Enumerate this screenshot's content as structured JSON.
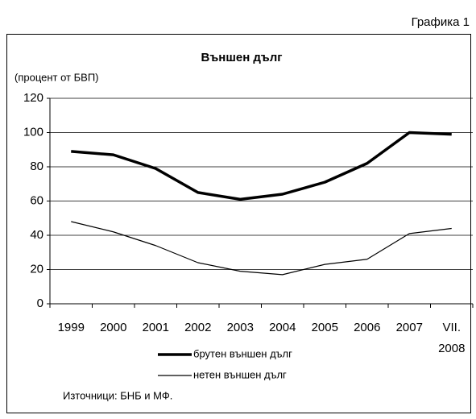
{
  "page_label": "Графика 1",
  "chart_data": {
    "type": "line",
    "title": "Външен дълг",
    "y_label": "(процент от БВП)",
    "categories": [
      "1999",
      "2000",
      "2001",
      "2002",
      "2003",
      "2004",
      "2005",
      "2006",
      "2007",
      "VII.\n2008"
    ],
    "series": [
      {
        "name": "брутен външен дълг",
        "color": "#000000",
        "width": 3.5,
        "values": [
          89,
          87,
          79,
          65,
          61,
          64,
          71,
          82,
          100,
          99
        ]
      },
      {
        "name": "нетен външен дълг",
        "color": "#000000",
        "width": 1.2,
        "values": [
          48,
          42,
          34,
          24,
          19,
          17,
          23,
          26,
          41,
          44
        ]
      }
    ],
    "ylim": [
      0,
      120
    ],
    "yticks": [
      0,
      20,
      40,
      60,
      80,
      100,
      120
    ],
    "grid": true,
    "source": "Източници: БНБ и МФ."
  }
}
